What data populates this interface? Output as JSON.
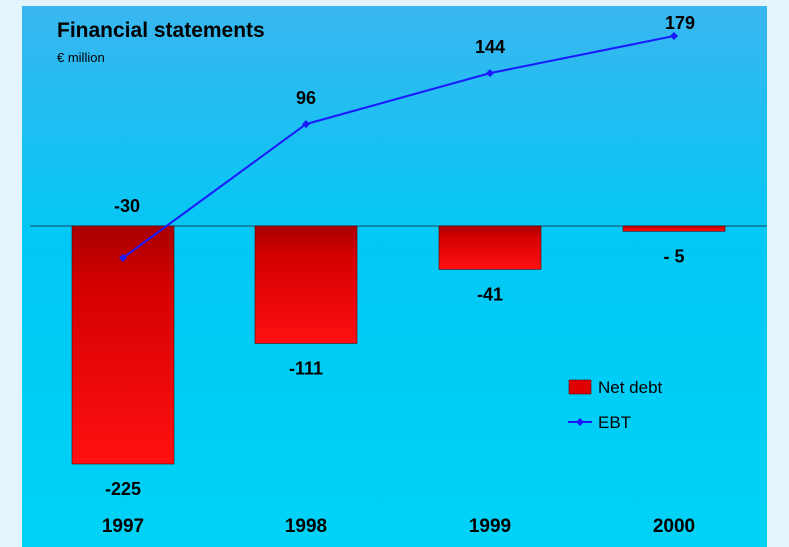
{
  "chart_data": {
    "type": "bar+line",
    "title": "Financial statements",
    "subtitle": "€ million",
    "categories": [
      "1997",
      "1998",
      "1999",
      "2000"
    ],
    "series": [
      {
        "name": "Net debt",
        "type": "bar",
        "values": [
          -225,
          -111,
          -41,
          -5
        ],
        "labels": [
          "-225",
          "-111",
          "-41",
          "- 5"
        ],
        "color": "#e00000"
      },
      {
        "name": "EBT",
        "type": "line",
        "values": [
          -30,
          96,
          144,
          179
        ],
        "labels": [
          "-30",
          "96",
          "144",
          "179"
        ],
        "color": "#1a1aff"
      }
    ],
    "ylim": [
      -225,
      179
    ],
    "baseline": 0,
    "legend_position": "lower-right",
    "background": "#00c6f2"
  }
}
